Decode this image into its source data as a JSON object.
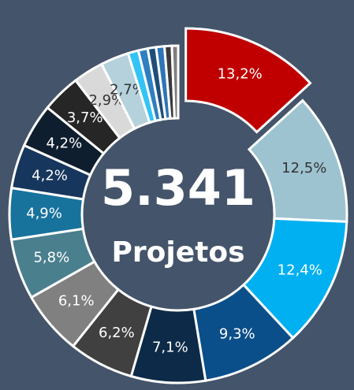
{
  "chart_data": {
    "type": "donut",
    "center_label": "5.341",
    "center_sublabel": "Projetos",
    "values": [
      13.2,
      12.5,
      12.4,
      9.3,
      7.1,
      6.2,
      6.1,
      5.8,
      4.9,
      4.2,
      4.2,
      3.7,
      2.9,
      2.7,
      1.0,
      0.9,
      0.8,
      0.8,
      0.7,
      0.6
    ],
    "value_labels": [
      "13,2%",
      "12,5%",
      "12,4%",
      "9,3%",
      "7,1%",
      "6,2%",
      "6,1%",
      "5,8%",
      "4,9%",
      "4,2%",
      "4,2%",
      "3,7%",
      "2,9%",
      "2,7%",
      null,
      null,
      null,
      null,
      null,
      null
    ],
    "colors": [
      "#c00000",
      "#9dc3d0",
      "#00b0f0",
      "#0b4f8a",
      "#0d2b48",
      "#404040",
      "#808080",
      "#4a7f8e",
      "#17729c",
      "#17365d",
      "#0f1e2e",
      "#262626",
      "#d9d9d9",
      "#b4d1dc",
      "#33c4f5",
      "#2f7fc1",
      "#1f4e79",
      "#2e75b6",
      "#3a3a3a",
      "#7f7f7f"
    ],
    "exploded": [
      0
    ]
  }
}
